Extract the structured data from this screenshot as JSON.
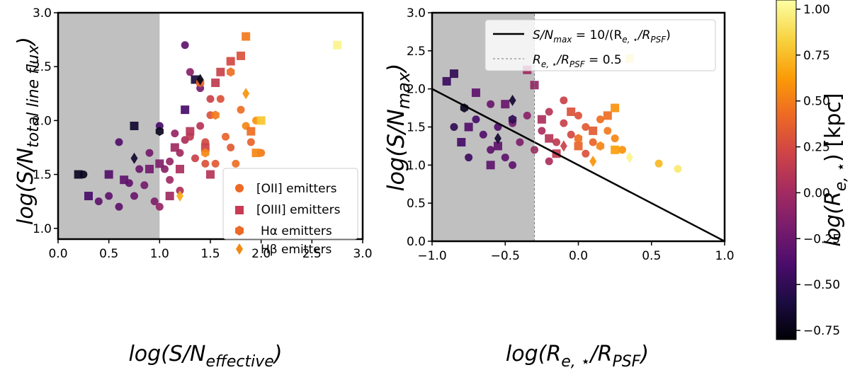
{
  "colors": {
    "shade": "#c0c0c0",
    "axis": "#000000",
    "cmap": [
      "#000004",
      "#1b0c41",
      "#4a0c6b",
      "#781c6d",
      "#a52c60",
      "#cf4446",
      "#ed6925",
      "#fb9b06",
      "#f7d13d",
      "#fcffa4"
    ]
  },
  "chart_data": [
    {
      "type": "scatter",
      "xlabel_base": "log(S/N",
      "xlabel_sub": "effective",
      "xlabel_close": ")",
      "ylabel_base": "log(S/N",
      "ylabel_sub": "total line flux",
      "ylabel_close": ")",
      "xlim": [
        0.0,
        3.0
      ],
      "ylim": [
        0.9,
        3.0
      ],
      "xticks": [
        "0.0",
        "0.5",
        "1.0",
        "1.5",
        "2.0",
        "2.5",
        "3.0"
      ],
      "yticks": [
        "1.0",
        "1.5",
        "2.0",
        "2.5",
        "3.0"
      ],
      "shaded_region": {
        "x": [
          0.0,
          1.0
        ]
      },
      "legend": {
        "position": "lower-right",
        "entries": [
          {
            "label": "[OII] emitters",
            "marker": "circle"
          },
          {
            "label": "[OIII] emitters",
            "marker": "square"
          },
          {
            "label": "Hα emitters",
            "marker": "hexagon"
          },
          {
            "label": "Hβ emitters",
            "marker": "diamond"
          }
        ]
      },
      "series": [
        {
          "marker": "circle",
          "points": [
            [
              0.25,
              1.5,
              -0.72
            ],
            [
              0.6,
              1.8,
              -0.35
            ],
            [
              0.5,
              1.3,
              -0.3
            ],
            [
              0.4,
              1.25,
              -0.3
            ],
            [
              0.7,
              1.42,
              -0.28
            ],
            [
              0.8,
              1.55,
              -0.25
            ],
            [
              0.9,
              1.7,
              -0.2
            ],
            [
              0.95,
              1.25,
              -0.15
            ],
            [
              1.0,
              1.95,
              -0.4
            ],
            [
              1.05,
              1.55,
              -0.1
            ],
            [
              1.1,
              1.62,
              -0.05
            ],
            [
              1.15,
              1.88,
              -0.05
            ],
            [
              1.2,
              1.7,
              0.0
            ],
            [
              1.25,
              1.82,
              0.05
            ],
            [
              1.3,
              2.45,
              -0.1
            ],
            [
              1.3,
              1.85,
              0.15
            ],
            [
              1.35,
              1.65,
              0.2
            ],
            [
              1.4,
              1.95,
              0.1
            ],
            [
              1.45,
              1.8,
              0.25
            ],
            [
              1.5,
              2.05,
              0.3
            ],
            [
              1.55,
              1.6,
              0.35
            ],
            [
              1.6,
              2.2,
              0.3
            ],
            [
              1.65,
              1.85,
              0.4
            ],
            [
              1.7,
              1.75,
              0.35
            ],
            [
              1.75,
              1.6,
              0.45
            ],
            [
              1.8,
              2.1,
              0.45
            ],
            [
              1.85,
              1.95,
              0.55
            ],
            [
              1.9,
              1.8,
              0.4
            ],
            [
              1.95,
              2.0,
              0.6
            ],
            [
              2.0,
              1.7,
              0.5
            ],
            [
              1.2,
              1.35,
              0.05
            ],
            [
              1.1,
              1.45,
              0.0
            ],
            [
              1.0,
              1.2,
              -0.05
            ],
            [
              0.85,
              1.4,
              -0.2
            ],
            [
              0.75,
              1.3,
              -0.25
            ],
            [
              0.6,
              1.2,
              -0.3
            ],
            [
              1.25,
              2.7,
              -0.3
            ],
            [
              1.4,
              2.3,
              -0.2
            ],
            [
              1.5,
              2.2,
              0.2
            ],
            [
              1.45,
              1.6,
              0.3
            ]
          ]
        },
        {
          "marker": "square",
          "points": [
            [
              0.2,
              1.5,
              -0.7
            ],
            [
              0.3,
              1.3,
              -0.4
            ],
            [
              0.5,
              1.5,
              -0.35
            ],
            [
              0.65,
              1.45,
              -0.3
            ],
            [
              0.75,
              1.95,
              -0.65
            ],
            [
              0.9,
              1.55,
              -0.2
            ],
            [
              1.0,
              1.6,
              -0.15
            ],
            [
              1.15,
              1.75,
              0.0
            ],
            [
              1.2,
              1.55,
              0.05
            ],
            [
              1.3,
              1.9,
              0.1
            ],
            [
              1.35,
              2.38,
              -0.6
            ],
            [
              1.45,
              1.75,
              0.2
            ],
            [
              1.55,
              2.35,
              0.15
            ],
            [
              1.6,
              2.45,
              0.2
            ],
            [
              1.7,
              2.55,
              0.25
            ],
            [
              1.8,
              2.6,
              0.3
            ],
            [
              1.85,
              2.78,
              0.5
            ],
            [
              1.9,
              1.9,
              0.45
            ],
            [
              2.0,
              2.0,
              0.8
            ],
            [
              1.25,
              2.1,
              -0.4
            ],
            [
              1.5,
              1.5,
              0.1
            ],
            [
              2.75,
              2.7,
              1.0
            ],
            [
              1.95,
              1.7,
              0.55
            ],
            [
              1.1,
              1.3,
              0.0
            ]
          ]
        },
        {
          "marker": "hexagon",
          "points": [
            [
              1.0,
              1.9,
              -0.7
            ],
            [
              1.4,
              2.35,
              0.4
            ],
            [
              1.55,
              2.05,
              0.5
            ],
            [
              1.7,
              2.45,
              0.45
            ],
            [
              1.45,
              1.7,
              0.55
            ]
          ]
        },
        {
          "marker": "diamond",
          "points": [
            [
              0.75,
              1.65,
              -0.65
            ],
            [
              1.4,
              2.38,
              -0.75
            ],
            [
              1.85,
              2.25,
              0.6
            ],
            [
              1.2,
              1.3,
              0.7
            ]
          ]
        }
      ]
    },
    {
      "type": "scatter",
      "xlabel_base": "log(R",
      "xlabel_sub": "e, ⋆",
      "xlabel_mid": "/R",
      "xlabel_sub2": "PSF",
      "xlabel_close": ")",
      "ylabel_base": "log(S/N",
      "ylabel_sub": "max",
      "ylabel_close": ")",
      "xlim": [
        -1.0,
        1.0
      ],
      "ylim": [
        0.0,
        3.0
      ],
      "xticks": [
        "−1.0",
        "−0.5",
        "0.0",
        "0.5",
        "1.0"
      ],
      "yticks": [
        "0.0",
        "0.5",
        "1.0",
        "1.5",
        "2.0",
        "2.5",
        "3.0"
      ],
      "shaded_region": {
        "x": [
          -1.0,
          -0.3
        ]
      },
      "lines": [
        {
          "label": "S/N",
          "label_sub": "max",
          "label_rest": " = 10/(R",
          "label_sub2": "e, ⋆",
          "label_rest2": "/R",
          "label_sub3": "PSF",
          "label_close": ")",
          "style": "solid",
          "x": [
            -1.0,
            1.0
          ],
          "y": [
            2.0,
            0.0
          ]
        },
        {
          "label": "R",
          "label_sub": "e, ⋆",
          "label_rest": "/R",
          "label_sub2": "PSF",
          "label_close": " = 0.5",
          "style": "dashed",
          "x": [
            -0.3,
            -0.3
          ],
          "y": [
            0.0,
            3.0
          ]
        }
      ],
      "legend": {
        "position": "top-right"
      },
      "series": [
        {
          "marker": "circle",
          "points": [
            [
              -0.7,
              1.6,
              -0.4
            ],
            [
              -0.65,
              1.4,
              -0.35
            ],
            [
              -0.6,
              1.2,
              -0.3
            ],
            [
              -0.55,
              1.5,
              -0.35
            ],
            [
              -0.5,
              1.1,
              -0.3
            ],
            [
              -0.45,
              1.55,
              -0.2
            ],
            [
              -0.4,
              1.3,
              -0.15
            ],
            [
              -0.35,
              1.65,
              -0.1
            ],
            [
              -0.3,
              1.2,
              0.0
            ],
            [
              -0.25,
              1.45,
              0.05
            ],
            [
              -0.2,
              1.7,
              0.1
            ],
            [
              -0.15,
              1.3,
              0.15
            ],
            [
              -0.1,
              1.55,
              0.2
            ],
            [
              -0.05,
              1.4,
              0.25
            ],
            [
              0.0,
              1.65,
              0.3
            ],
            [
              0.05,
              1.5,
              0.35
            ],
            [
              0.1,
              1.3,
              0.4
            ],
            [
              0.15,
              1.6,
              0.45
            ],
            [
              0.2,
              1.45,
              0.5
            ],
            [
              0.25,
              1.35,
              0.55
            ],
            [
              0.3,
              1.2,
              0.6
            ],
            [
              0.55,
              1.02,
              0.75
            ],
            [
              0.68,
              0.95,
              0.95
            ],
            [
              -0.75,
              1.1,
              -0.45
            ],
            [
              -0.85,
              1.5,
              -0.5
            ],
            [
              -0.6,
              1.8,
              -0.25
            ],
            [
              -0.2,
              1.05,
              0.05
            ],
            [
              -0.1,
              1.85,
              0.2
            ],
            [
              0.05,
              1.15,
              0.3
            ],
            [
              -0.45,
              1.0,
              -0.3
            ]
          ]
        },
        {
          "marker": "square",
          "points": [
            [
              -0.9,
              2.1,
              -0.45
            ],
            [
              -0.85,
              2.2,
              -0.5
            ],
            [
              -0.8,
              1.3,
              -0.4
            ],
            [
              -0.75,
              1.5,
              -0.35
            ],
            [
              -0.7,
              1.95,
              -0.3
            ],
            [
              -0.55,
              1.25,
              -0.3
            ],
            [
              -0.35,
              2.25,
              0.0
            ],
            [
              -0.3,
              2.05,
              -0.05
            ],
            [
              -0.25,
              1.6,
              0.05
            ],
            [
              -0.2,
              1.35,
              0.1
            ],
            [
              -0.15,
              1.15,
              0.15
            ],
            [
              -0.05,
              1.7,
              0.3
            ],
            [
              0.1,
              1.45,
              0.35
            ],
            [
              0.2,
              1.65,
              0.45
            ],
            [
              0.25,
              1.75,
              0.6
            ],
            [
              0.25,
              1.2,
              0.65
            ],
            [
              0.35,
              2.4,
              0.95
            ],
            [
              -0.5,
              1.8,
              -0.25
            ],
            [
              0.0,
              1.25,
              0.4
            ],
            [
              -0.6,
              1.0,
              -0.3
            ]
          ]
        },
        {
          "marker": "hexagon",
          "points": [
            [
              -0.78,
              1.75,
              -0.7
            ],
            [
              -0.45,
              1.6,
              -0.5
            ],
            [
              0.0,
              1.35,
              0.45
            ],
            [
              0.15,
              1.25,
              0.55
            ]
          ]
        },
        {
          "marker": "diamond",
          "points": [
            [
              -0.45,
              1.85,
              -0.65
            ],
            [
              -0.55,
              1.35,
              -0.65
            ],
            [
              -0.1,
              1.25,
              0.2
            ],
            [
              0.1,
              1.05,
              0.6
            ],
            [
              0.35,
              1.1,
              1.0
            ]
          ]
        }
      ]
    }
  ],
  "colorbar": {
    "label_base": "log(R",
    "label_sub": "e, ⋆",
    "label_close": ") [kpc]",
    "range": [
      -0.8,
      1.05
    ],
    "ticks": [
      -0.75,
      -0.5,
      -0.25,
      0.0,
      0.25,
      0.5,
      0.75,
      1.0
    ],
    "tick_labels": [
      "−0.75",
      "−0.50",
      "−0.25",
      "0.00",
      "0.25",
      "0.50",
      "0.75",
      "1.00"
    ]
  }
}
